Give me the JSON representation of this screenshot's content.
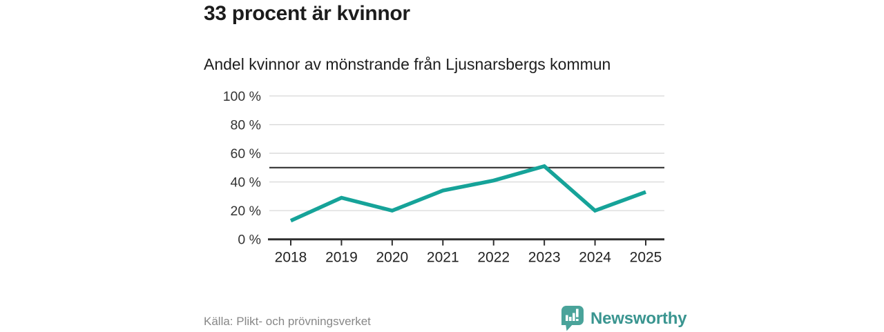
{
  "header": {
    "title": "33 procent är kvinnor",
    "subtitle": "Andel kvinnor av mönstrande från Ljusnarsbergs kommun"
  },
  "chart_data": {
    "type": "line",
    "title": "33 procent är kvinnor",
    "subtitle": "Andel kvinnor av mönstrande från Ljusnarsbergs kommun",
    "categories": [
      "2018",
      "2019",
      "2020",
      "2021",
      "2022",
      "2023",
      "2024",
      "2025"
    ],
    "series": [
      {
        "name": "Andel kvinnor av mönstrande",
        "values": [
          13,
          29,
          20,
          34,
          41,
          51,
          20,
          33
        ]
      }
    ],
    "unit": "%",
    "ylim": [
      0,
      100
    ],
    "y_tick_values": [
      0,
      20,
      40,
      60,
      80,
      100
    ],
    "y_tick_labels": [
      "0 %",
      "20 %",
      "40 %",
      "60 %",
      "80 %",
      "100 %"
    ],
    "reference_line": {
      "value": 50
    },
    "grid": true,
    "legend_position": "none",
    "line_color": "#16a399"
  },
  "footer": {
    "source": "Källa: Plikt- och prövningsverket",
    "brand": "Newsworthy"
  },
  "colors": {
    "title_text": "#1c1c1c",
    "axis": "#2e2e2e",
    "grid": "#d8d8d8",
    "reference": "#3c3c3c",
    "y_label": "#333333",
    "x_label": "#222222",
    "line": "#16a399",
    "source_text": "#878787",
    "brand_badge": "#4aa39a",
    "brand_text": "#3a9590"
  }
}
